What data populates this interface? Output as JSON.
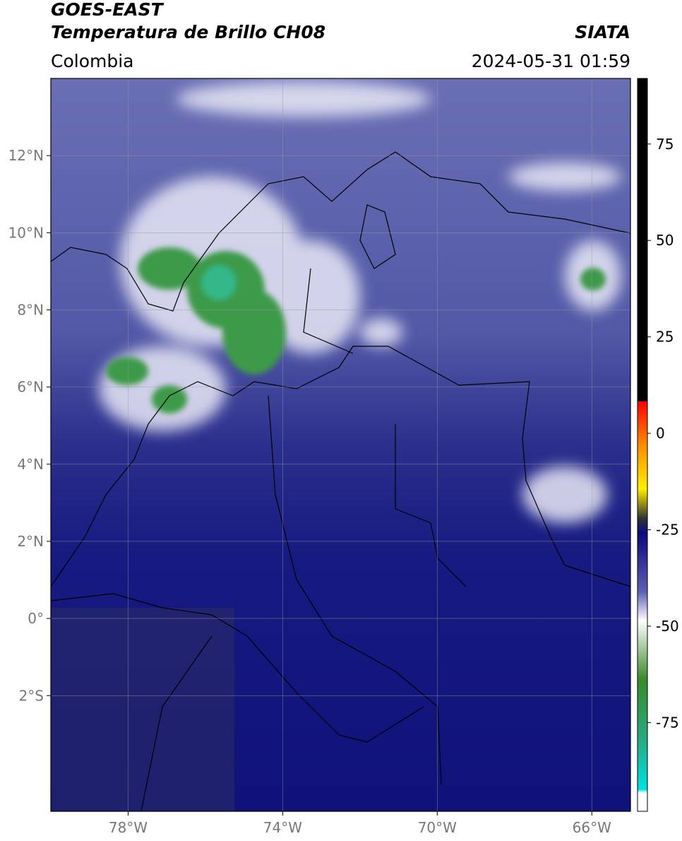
{
  "header": {
    "title": "GOES-EAST",
    "subtitle": "Temperatura de Brillo CH08",
    "source": "SIATA",
    "region": "Colombia",
    "datetime": "2024-05-31 01:59"
  },
  "map": {
    "xlim": [
      -80,
      -65
    ],
    "ylim": [
      -5,
      14
    ],
    "xticks": [
      {
        "value": -78,
        "label": "78°W"
      },
      {
        "value": -74,
        "label": "74°W"
      },
      {
        "value": -70,
        "label": "70°W"
      },
      {
        "value": -66,
        "label": "66°W"
      }
    ],
    "yticks": [
      {
        "value": 12,
        "label": "12°N"
      },
      {
        "value": 10,
        "label": "10°N"
      },
      {
        "value": 8,
        "label": "8°N"
      },
      {
        "value": 6,
        "label": "6°N"
      },
      {
        "value": 4,
        "label": "4°N"
      },
      {
        "value": 2,
        "label": "2°N"
      },
      {
        "value": 0,
        "label": "0°"
      },
      {
        "value": -2,
        "label": "2°S"
      }
    ]
  },
  "colorbar": {
    "lim": [
      -98,
      92
    ],
    "ticks": [
      75,
      50,
      25,
      0,
      -25,
      -50,
      -75
    ]
  }
}
